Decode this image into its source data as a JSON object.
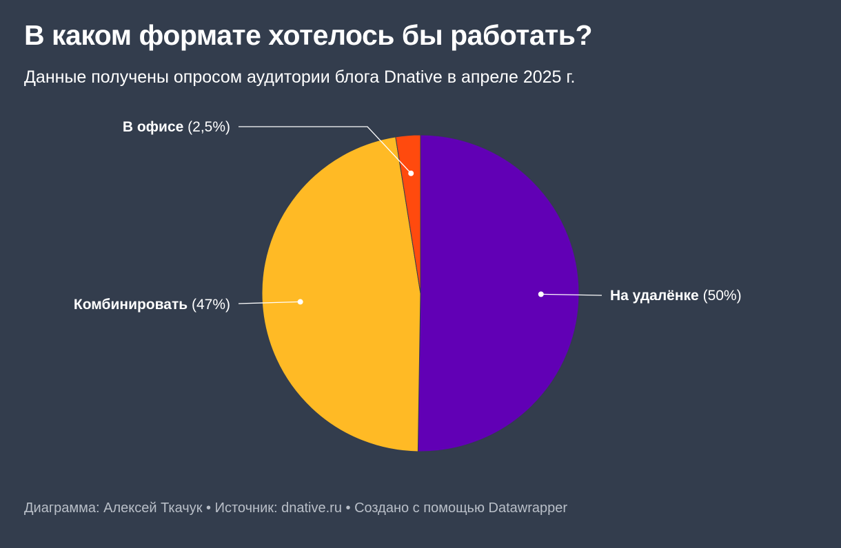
{
  "title": "В каком формате хотелось бы работать?",
  "subtitle": "Данные получены опросом аудитории блога Dnative в апреле 2025 г.",
  "footer": {
    "chart_label": "Диаграмма:",
    "author": "Алексей Ткачук",
    "separator": "•",
    "source_label": "Источник:",
    "source": "dnative.ru",
    "credit": "Создано с помощью Datawrapper"
  },
  "chart_data": {
    "type": "pie",
    "title": "В каком формате хотелось бы работать?",
    "subtitle": "Данные получены опросом аудитории блога Dnative в апреле 2025 г.",
    "unit": "%",
    "slices": [
      {
        "name": "На удалёнке",
        "value": 50,
        "label": "(50%)",
        "color": "#6100b5",
        "label_side": "right"
      },
      {
        "name": "Комбинировать",
        "value": 47,
        "label": "(47%)",
        "color": "#ffba25",
        "label_side": "left"
      },
      {
        "name": "В офисе",
        "value": 2.5,
        "label": "(2,5%)",
        "color": "#ff4a0e",
        "label_side": "top-left"
      }
    ],
    "start_angle_deg": 0,
    "direction": "clockwise",
    "slice_border_color": "#333d4d",
    "leader_color": "#ffffff"
  }
}
